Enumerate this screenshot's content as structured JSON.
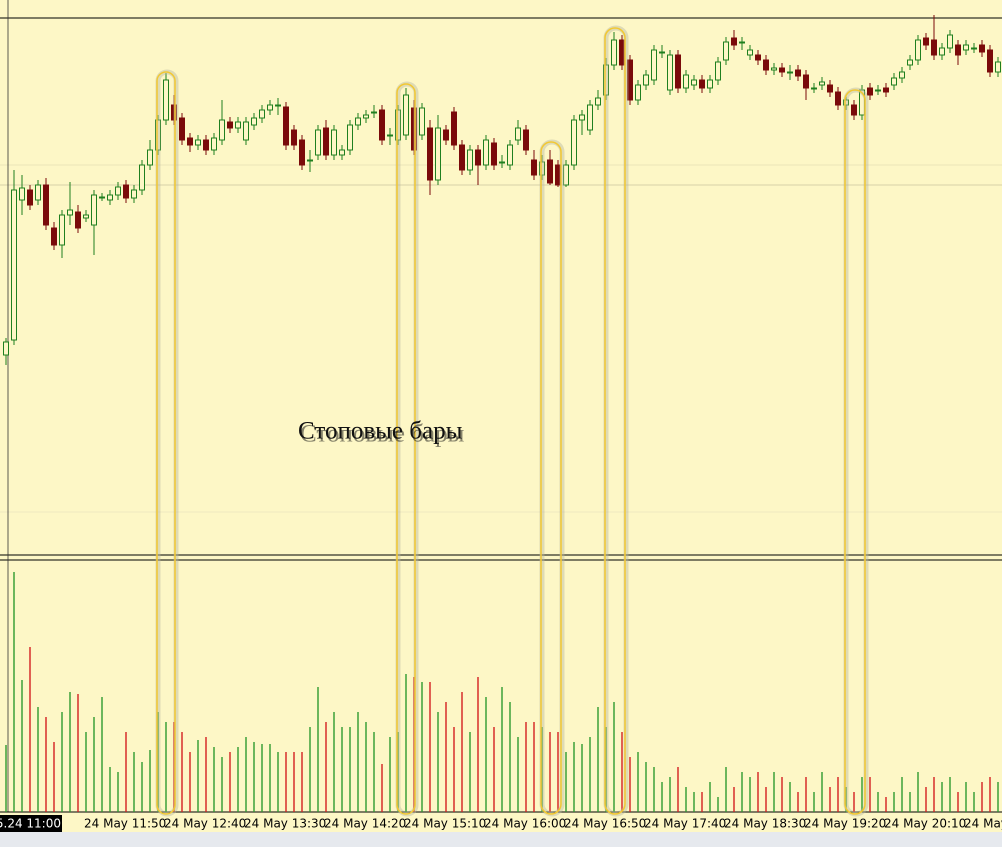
{
  "chart_data": {
    "type": "candlestick",
    "annotation": "Стоповые бары",
    "up_color": "#1f7f1f",
    "down_color": "#7a0a0a",
    "up_volume_color": "#2e9a2e",
    "down_volume_color": "#d42020",
    "ylim": [
      0,
      555
    ],
    "volume_ylim": [
      0,
      252
    ],
    "categories": [
      "5.24 11:00",
      null,
      null,
      null,
      null,
      null,
      null,
      null,
      null,
      null,
      "24 May 11:50",
      null,
      null,
      null,
      null,
      null,
      null,
      null,
      null,
      null,
      "24 May 12:40",
      null,
      null,
      null,
      null,
      null,
      null,
      null,
      null,
      null,
      "24 May 13:30",
      null,
      null,
      null,
      null,
      null,
      null,
      null,
      null,
      null,
      "24 May 14:20",
      null,
      null,
      null,
      null,
      null,
      null,
      null,
      null,
      null,
      "24 May 15:10",
      null,
      null,
      null,
      null,
      null,
      null,
      null,
      null,
      null,
      "24 May 16:00",
      null,
      null,
      null,
      null,
      null,
      null,
      null,
      null,
      null,
      "24 May 16:50",
      null,
      null,
      null,
      null,
      null,
      null,
      null,
      null,
      null,
      "24 May 17:40",
      null,
      null,
      null,
      null,
      null,
      null,
      null,
      null,
      null,
      "24 May 18:30",
      null,
      null,
      null,
      null,
      null,
      null,
      null,
      null,
      null,
      "24 May 19:20",
      null,
      null,
      null,
      null,
      null,
      null,
      null,
      null,
      null,
      "24 May 20:10",
      null,
      null,
      null,
      null,
      null,
      null,
      null,
      null,
      null,
      "24 May",
      null,
      null,
      null,
      null
    ],
    "open": [
      200,
      215,
      355,
      365,
      355,
      370,
      327,
      310,
      340,
      343,
      337,
      330,
      358,
      355,
      360,
      370,
      357,
      365,
      390,
      405,
      435,
      450,
      437,
      417,
      410,
      415,
      405,
      415,
      433,
      427,
      415,
      430,
      437,
      445,
      450,
      448,
      425,
      415,
      395,
      400,
      427,
      400,
      400,
      405,
      430,
      437,
      443,
      445,
      420,
      415,
      420,
      447,
      420,
      427,
      375,
      425,
      443,
      410,
      385,
      405,
      390,
      412,
      393,
      390,
      415,
      425,
      395,
      380,
      395,
      390,
      370,
      390,
      435,
      425,
      450,
      460,
      490,
      515,
      495,
      455,
      470,
      475,
      503,
      465,
      500,
      467,
      470,
      475,
      467,
      475,
      495,
      517,
      513,
      500,
      500,
      495,
      485,
      487,
      483,
      485,
      480,
      467,
      470,
      470,
      463,
      450,
      450,
      440,
      467,
      465,
      467,
      470,
      477,
      490,
      495,
      517,
      515,
      500,
      507,
      510,
      505,
      507,
      510,
      505,
      483
    ],
    "high": [
      217,
      385,
      380,
      370,
      375,
      377,
      333,
      345,
      373,
      350,
      345,
      365,
      362,
      365,
      373,
      375,
      370,
      395,
      415,
      440,
      482,
      460,
      442,
      422,
      420,
      420,
      422,
      455,
      438,
      438,
      438,
      442,
      450,
      455,
      457,
      453,
      430,
      420,
      405,
      430,
      435,
      430,
      410,
      435,
      442,
      445,
      450,
      450,
      427,
      450,
      467,
      455,
      452,
      435,
      440,
      430,
      448,
      415,
      410,
      410,
      420,
      417,
      400,
      415,
      435,
      430,
      405,
      400,
      405,
      395,
      395,
      440,
      445,
      455,
      465,
      497,
      523,
      520,
      500,
      475,
      485,
      510,
      510,
      505,
      505,
      485,
      480,
      480,
      480,
      498,
      518,
      525,
      518,
      510,
      505,
      500,
      492,
      492,
      490,
      490,
      485,
      472,
      478,
      475,
      468,
      460,
      455,
      470,
      472,
      470,
      472,
      482,
      488,
      500,
      520,
      522,
      540,
      512,
      525,
      515,
      515,
      512,
      515,
      510,
      498
    ],
    "low": [
      190,
      210,
      340,
      345,
      350,
      325,
      305,
      297,
      330,
      322,
      333,
      300,
      354,
      350,
      355,
      352,
      352,
      360,
      385,
      400,
      430,
      430,
      410,
      403,
      405,
      400,
      400,
      410,
      422,
      422,
      410,
      425,
      432,
      440,
      440,
      405,
      405,
      385,
      383,
      395,
      395,
      395,
      395,
      400,
      425,
      432,
      437,
      410,
      410,
      410,
      415,
      400,
      415,
      360,
      370,
      410,
      405,
      380,
      380,
      370,
      385,
      385,
      387,
      385,
      410,
      400,
      375,
      375,
      370,
      368,
      368,
      385,
      420,
      420,
      445,
      455,
      485,
      485,
      450,
      450,
      465,
      470,
      497,
      460,
      462,
      462,
      465,
      462,
      462,
      470,
      490,
      505,
      505,
      495,
      490,
      480,
      480,
      478,
      475,
      474,
      455,
      462,
      465,
      458,
      445,
      445,
      435,
      435,
      455,
      460,
      458,
      465,
      472,
      485,
      490,
      505,
      495,
      495,
      502,
      490,
      500,
      502,
      498,
      478,
      478
    ],
    "close": [
      213,
      365,
      367,
      350,
      370,
      330,
      310,
      340,
      345,
      327,
      340,
      360,
      358,
      360,
      368,
      357,
      365,
      390,
      405,
      435,
      475,
      435,
      415,
      410,
      415,
      405,
      417,
      435,
      427,
      433,
      433,
      437,
      445,
      450,
      450,
      410,
      410,
      390,
      395,
      425,
      400,
      425,
      405,
      430,
      437,
      440,
      443,
      415,
      420,
      445,
      460,
      405,
      447,
      375,
      427,
      415,
      410,
      385,
      405,
      390,
      415,
      390,
      393,
      410,
      427,
      405,
      380,
      393,
      372,
      370,
      390,
      435,
      440,
      450,
      457,
      490,
      515,
      490,
      455,
      470,
      480,
      505,
      503,
      500,
      467,
      480,
      475,
      467,
      475,
      493,
      513,
      510,
      513,
      505,
      495,
      485,
      487,
      483,
      483,
      479,
      467,
      467,
      473,
      463,
      450,
      455,
      440,
      465,
      460,
      465,
      463,
      477,
      483,
      495,
      515,
      510,
      500,
      507,
      520,
      500,
      510,
      507,
      503,
      483,
      493
    ],
    "volume": [
      67,
      240,
      132,
      165,
      105,
      95,
      70,
      100,
      120,
      118,
      80,
      95,
      115,
      45,
      40,
      80,
      60,
      50,
      62,
      100,
      90,
      90,
      80,
      60,
      72,
      75,
      65,
      55,
      60,
      65,
      75,
      70,
      68,
      68,
      60,
      60,
      60,
      60,
      85,
      125,
      90,
      100,
      85,
      85,
      100,
      90,
      80,
      48,
      75,
      80,
      138,
      135,
      130,
      130,
      100,
      110,
      85,
      120,
      80,
      135,
      115,
      85,
      125,
      110,
      75,
      90,
      90,
      85,
      80,
      80,
      60,
      70,
      68,
      75,
      105,
      85,
      110,
      80,
      55,
      60,
      50,
      45,
      30,
      35,
      45,
      25,
      20,
      20,
      30,
      15,
      45,
      25,
      40,
      35,
      40,
      25,
      40,
      35,
      30,
      20,
      35,
      20,
      40,
      25,
      35,
      25,
      20,
      35,
      35,
      20,
      15,
      20,
      35,
      20,
      40,
      25,
      35,
      30,
      35,
      20,
      30,
      20,
      30,
      35,
      30
    ]
  }
}
